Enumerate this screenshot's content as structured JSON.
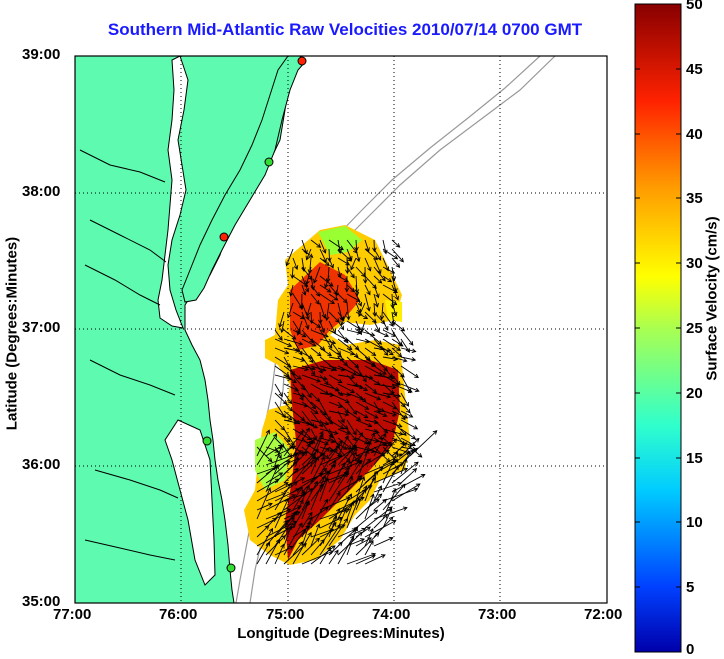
{
  "title": "Southern Mid-Atlantic Raw Velocities 2010/07/14 0700 GMT",
  "map": {
    "xlabel": "Longitude (Degrees:Minutes)",
    "ylabel": "Latitude (Degrees:Minutes)",
    "lon_ticks": [
      "77:00",
      "76:00",
      "75:00",
      "74:00",
      "73:00",
      "72:00"
    ],
    "lat_ticks": [
      "39:00",
      "38:00",
      "37:00",
      "36:00",
      "35:00"
    ],
    "lon_range": [
      -77,
      -72
    ],
    "lat_range": [
      35,
      39
    ],
    "grid": "dotted",
    "land_color": "#5dfaaf",
    "coast_color": "#000000",
    "bathymetry_color": "#999999",
    "station_markers": [
      "green",
      "red"
    ]
  },
  "colorbar": {
    "label": "Surface Velocity (cm/s)",
    "ticks": [
      "0",
      "5",
      "10",
      "15",
      "20",
      "25",
      "30",
      "35",
      "40",
      "45",
      "50"
    ],
    "range": [
      0,
      50
    ],
    "colormap": "jet"
  }
}
